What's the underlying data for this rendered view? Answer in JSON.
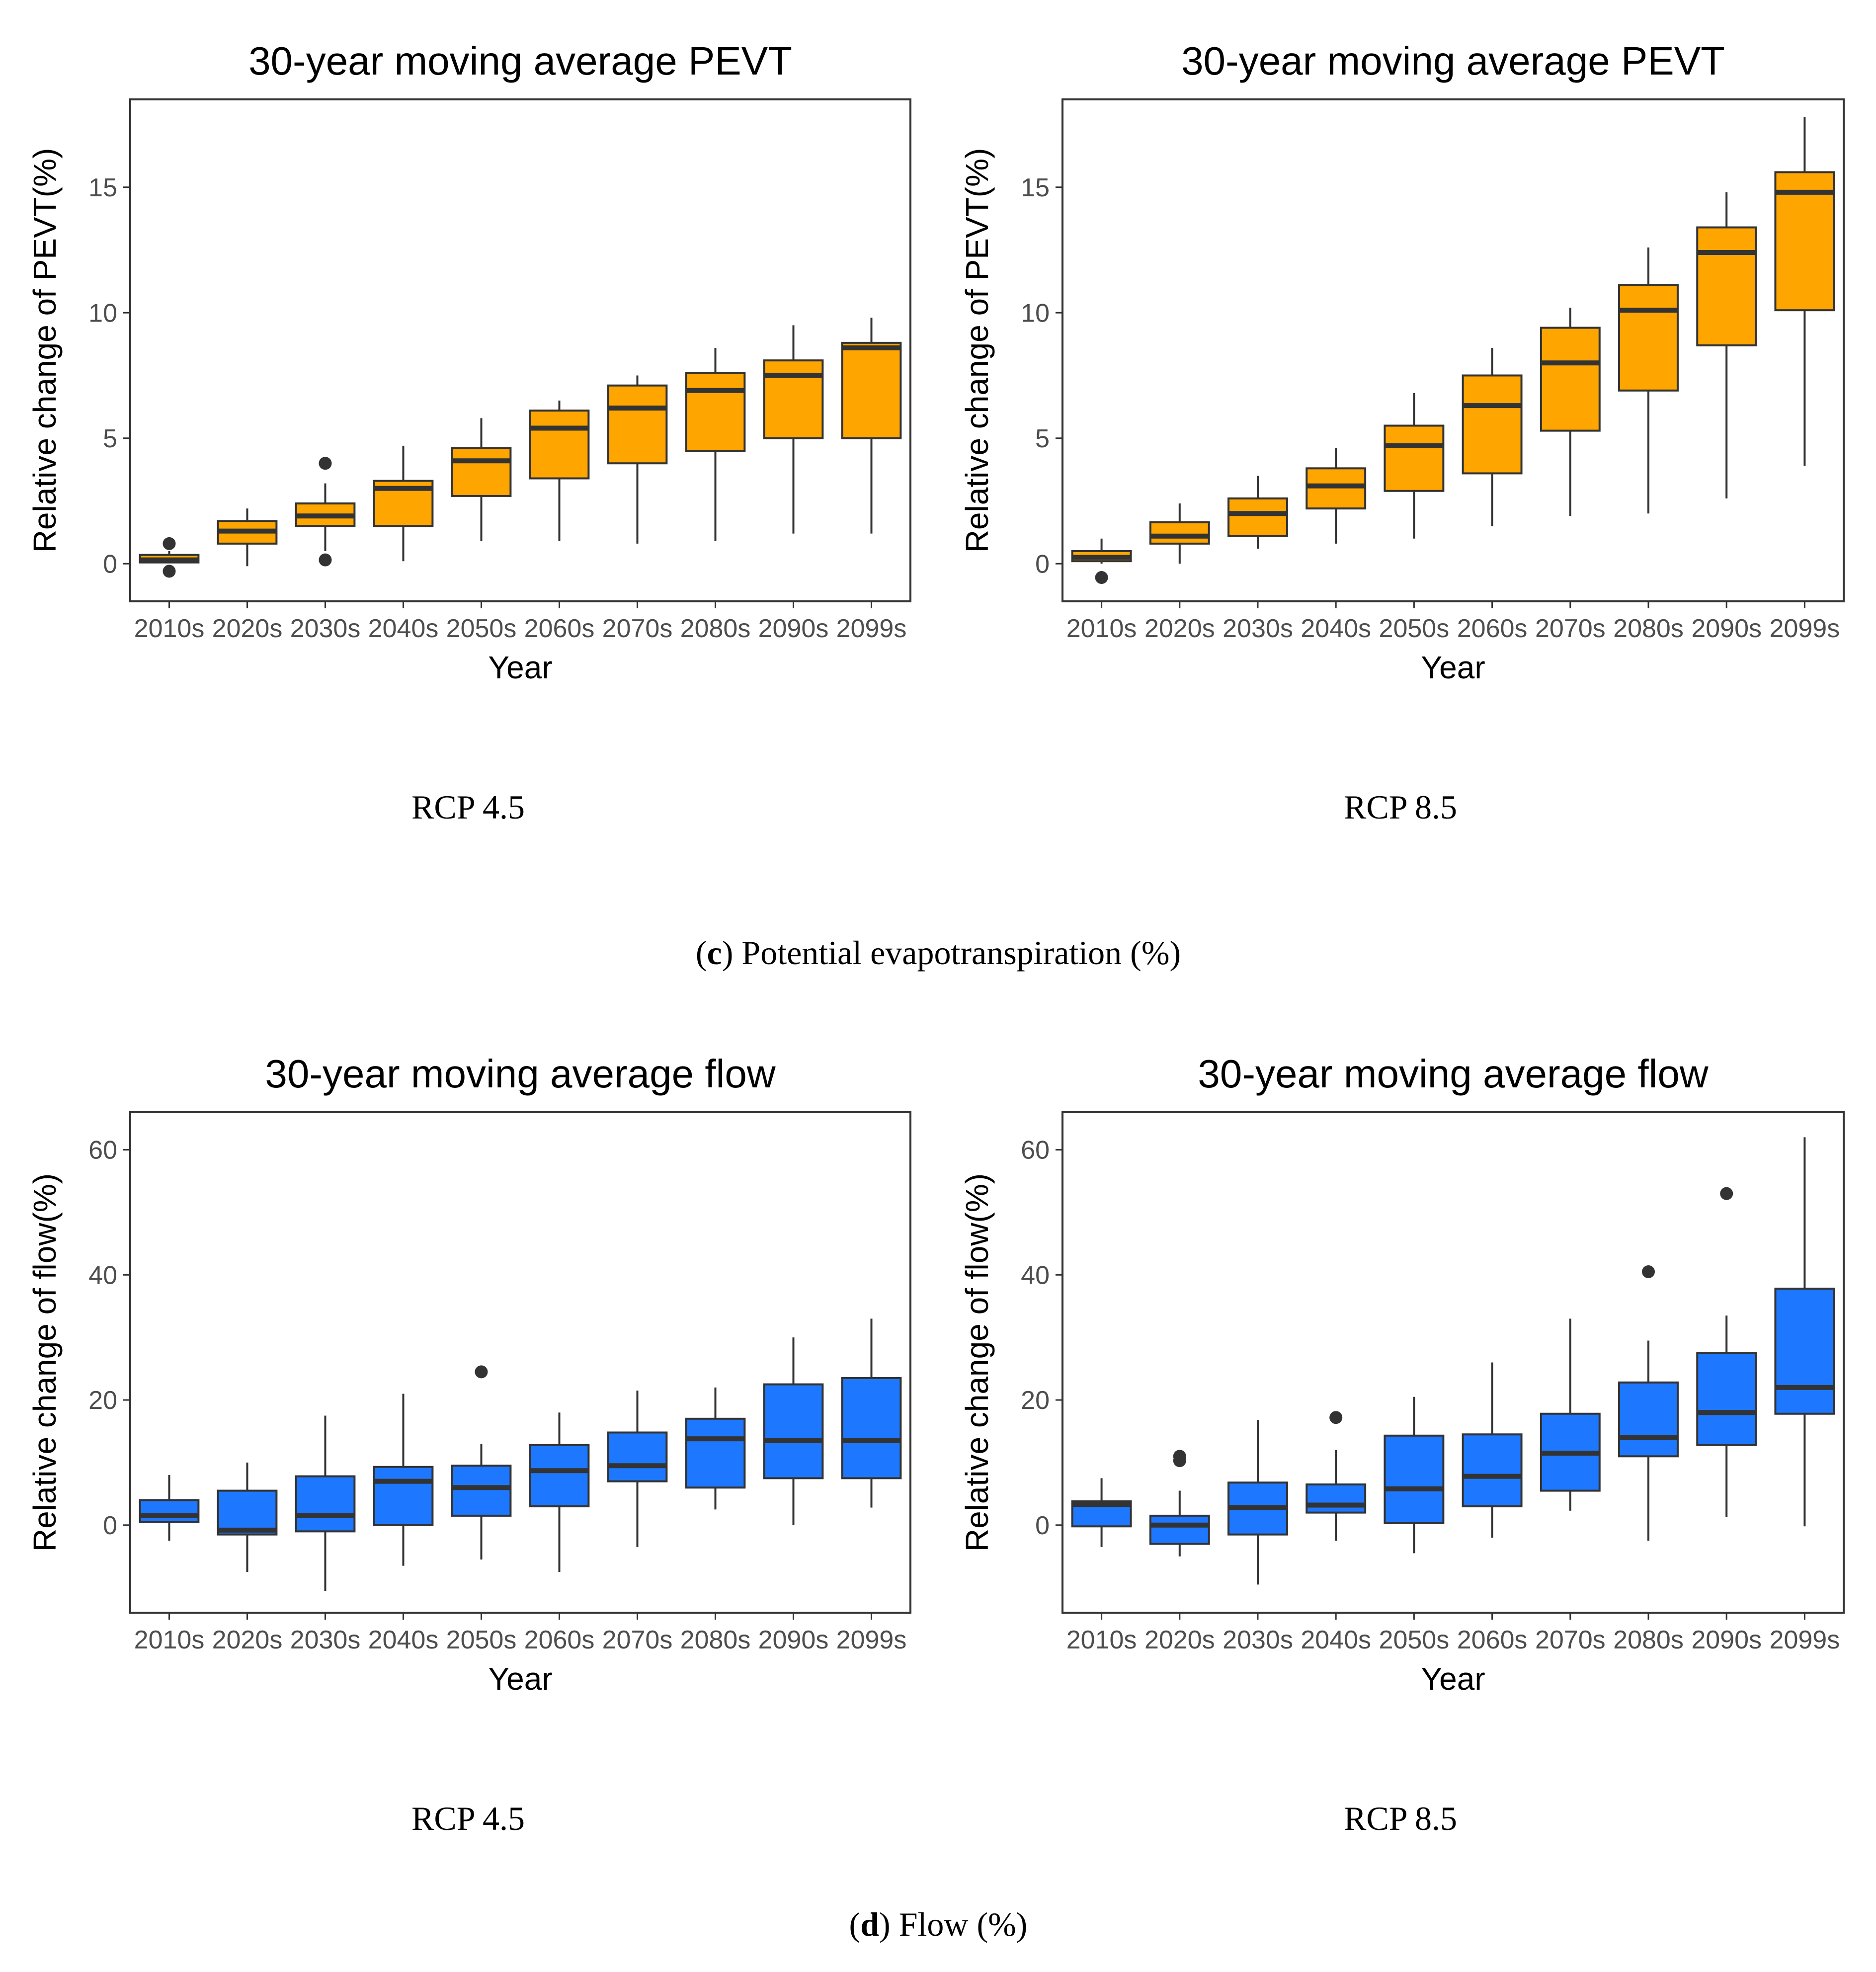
{
  "chart_data": [
    {
      "type": "boxplot",
      "title": "30-year moving average PEVT",
      "xlabel": "Year",
      "ylabel": "Relative change of PEVT(%)",
      "ylim": [
        -1.5,
        18.5
      ],
      "yticks": [
        0,
        5,
        10,
        15
      ],
      "fill_color": "#FFA500",
      "scenario_label": "RCP 4.5",
      "categories": [
        "2010s",
        "2020s",
        "2030s",
        "2040s",
        "2050s",
        "2060s",
        "2070s",
        "2080s",
        "2090s",
        "2099s"
      ],
      "boxes": [
        {
          "whisker_low": 0.05,
          "q1": 0.05,
          "median": 0.15,
          "q3": 0.35,
          "whisker_high": 0.5,
          "outliers": [
            0.8,
            -0.3
          ]
        },
        {
          "whisker_low": -0.1,
          "q1": 0.8,
          "median": 1.3,
          "q3": 1.7,
          "whisker_high": 2.2,
          "outliers": []
        },
        {
          "whisker_low": 0.5,
          "q1": 1.5,
          "median": 1.9,
          "q3": 2.4,
          "whisker_high": 3.2,
          "outliers": [
            4.0,
            0.15
          ]
        },
        {
          "whisker_low": 0.1,
          "q1": 1.5,
          "median": 3.0,
          "q3": 3.3,
          "whisker_high": 4.7,
          "outliers": []
        },
        {
          "whisker_low": 0.9,
          "q1": 2.7,
          "median": 4.1,
          "q3": 4.6,
          "whisker_high": 5.8,
          "outliers": []
        },
        {
          "whisker_low": 0.9,
          "q1": 3.4,
          "median": 5.4,
          "q3": 6.1,
          "whisker_high": 6.5,
          "outliers": []
        },
        {
          "whisker_low": 0.8,
          "q1": 4.0,
          "median": 6.2,
          "q3": 7.1,
          "whisker_high": 7.5,
          "outliers": []
        },
        {
          "whisker_low": 0.9,
          "q1": 4.5,
          "median": 6.9,
          "q3": 7.6,
          "whisker_high": 8.6,
          "outliers": []
        },
        {
          "whisker_low": 1.2,
          "q1": 5.0,
          "median": 7.5,
          "q3": 8.1,
          "whisker_high": 9.5,
          "outliers": []
        },
        {
          "whisker_low": 1.2,
          "q1": 5.0,
          "median": 8.6,
          "q3": 8.8,
          "whisker_high": 9.8,
          "outliers": []
        }
      ]
    },
    {
      "type": "boxplot",
      "title": "30-year moving average PEVT",
      "xlabel": "Year",
      "ylabel": "Relative change of PEVT(%)",
      "ylim": [
        -1.5,
        18.5
      ],
      "yticks": [
        0,
        5,
        10,
        15
      ],
      "fill_color": "#FFA500",
      "scenario_label": "RCP 8.5",
      "categories": [
        "2010s",
        "2020s",
        "2030s",
        "2040s",
        "2050s",
        "2060s",
        "2070s",
        "2080s",
        "2090s",
        "2099s"
      ],
      "boxes": [
        {
          "whisker_low": 0.0,
          "q1": 0.1,
          "median": 0.25,
          "q3": 0.5,
          "whisker_high": 1.0,
          "outliers": [
            -0.55
          ]
        },
        {
          "whisker_low": 0.0,
          "q1": 0.8,
          "median": 1.1,
          "q3": 1.65,
          "whisker_high": 2.4,
          "outliers": []
        },
        {
          "whisker_low": 0.6,
          "q1": 1.1,
          "median": 2.0,
          "q3": 2.6,
          "whisker_high": 3.5,
          "outliers": []
        },
        {
          "whisker_low": 0.8,
          "q1": 2.2,
          "median": 3.1,
          "q3": 3.8,
          "whisker_high": 4.6,
          "outliers": []
        },
        {
          "whisker_low": 1.0,
          "q1": 2.9,
          "median": 4.7,
          "q3": 5.5,
          "whisker_high": 6.8,
          "outliers": []
        },
        {
          "whisker_low": 1.5,
          "q1": 3.6,
          "median": 6.3,
          "q3": 7.5,
          "whisker_high": 8.6,
          "outliers": []
        },
        {
          "whisker_low": 1.9,
          "q1": 5.3,
          "median": 8.0,
          "q3": 9.4,
          "whisker_high": 10.2,
          "outliers": []
        },
        {
          "whisker_low": 2.0,
          "q1": 6.9,
          "median": 10.1,
          "q3": 11.1,
          "whisker_high": 12.6,
          "outliers": []
        },
        {
          "whisker_low": 2.6,
          "q1": 8.7,
          "median": 12.4,
          "q3": 13.4,
          "whisker_high": 14.8,
          "outliers": []
        },
        {
          "whisker_low": 3.9,
          "q1": 10.1,
          "median": 14.8,
          "q3": 15.6,
          "whisker_high": 17.8,
          "outliers": []
        }
      ]
    },
    {
      "type": "boxplot",
      "title": "30-year moving average flow",
      "xlabel": "Year",
      "ylabel": "Relative change of flow(%)",
      "ylim": [
        -14,
        66
      ],
      "yticks": [
        0,
        20,
        40,
        60
      ],
      "fill_color": "#1E78FF",
      "scenario_label": "RCP 4.5",
      "categories": [
        "2010s",
        "2020s",
        "2030s",
        "2040s",
        "2050s",
        "2060s",
        "2070s",
        "2080s",
        "2090s",
        "2099s"
      ],
      "boxes": [
        {
          "whisker_low": -2.5,
          "q1": 0.5,
          "median": 1.5,
          "q3": 4.0,
          "whisker_high": 8.0,
          "outliers": []
        },
        {
          "whisker_low": -7.5,
          "q1": -1.5,
          "median": -0.8,
          "q3": 5.5,
          "whisker_high": 10.0,
          "outliers": []
        },
        {
          "whisker_low": -10.5,
          "q1": -1.0,
          "median": 1.5,
          "q3": 7.8,
          "whisker_high": 17.5,
          "outliers": []
        },
        {
          "whisker_low": -6.5,
          "q1": 0.0,
          "median": 7.0,
          "q3": 9.3,
          "whisker_high": 21.0,
          "outliers": []
        },
        {
          "whisker_low": -5.5,
          "q1": 1.5,
          "median": 6.0,
          "q3": 9.5,
          "whisker_high": 13.0,
          "outliers": [
            24.5
          ]
        },
        {
          "whisker_low": -7.5,
          "q1": 3.0,
          "median": 8.7,
          "q3": 12.8,
          "whisker_high": 18.0,
          "outliers": []
        },
        {
          "whisker_low": -3.5,
          "q1": 7.0,
          "median": 9.5,
          "q3": 14.8,
          "whisker_high": 21.5,
          "outliers": []
        },
        {
          "whisker_low": 2.5,
          "q1": 6.0,
          "median": 13.8,
          "q3": 17.0,
          "whisker_high": 22.0,
          "outliers": []
        },
        {
          "whisker_low": 0.0,
          "q1": 7.5,
          "median": 13.5,
          "q3": 22.5,
          "whisker_high": 30.0,
          "outliers": []
        },
        {
          "whisker_low": 2.8,
          "q1": 7.5,
          "median": 13.5,
          "q3": 23.5,
          "whisker_high": 33.0,
          "outliers": []
        }
      ]
    },
    {
      "type": "boxplot",
      "title": "30-year moving average flow",
      "xlabel": "Year",
      "ylabel": "Relative change of flow(%)",
      "ylim": [
        -14,
        66
      ],
      "yticks": [
        0,
        20,
        40,
        60
      ],
      "fill_color": "#1E78FF",
      "scenario_label": "RCP 8.5",
      "categories": [
        "2010s",
        "2020s",
        "2030s",
        "2040s",
        "2050s",
        "2060s",
        "2070s",
        "2080s",
        "2090s",
        "2099s"
      ],
      "boxes": [
        {
          "whisker_low": -3.5,
          "q1": -0.2,
          "median": 3.3,
          "q3": 3.8,
          "whisker_high": 7.5,
          "outliers": []
        },
        {
          "whisker_low": -5.0,
          "q1": -3.0,
          "median": 0.0,
          "q3": 1.5,
          "whisker_high": 5.5,
          "outliers": [
            10.3,
            11.0
          ]
        },
        {
          "whisker_low": -9.5,
          "q1": -1.5,
          "median": 2.8,
          "q3": 6.8,
          "whisker_high": 16.8,
          "outliers": []
        },
        {
          "whisker_low": -2.5,
          "q1": 2.0,
          "median": 3.2,
          "q3": 6.5,
          "whisker_high": 12.0,
          "outliers": [
            17.2
          ]
        },
        {
          "whisker_low": -4.5,
          "q1": 0.3,
          "median": 5.8,
          "q3": 14.3,
          "whisker_high": 20.5,
          "outliers": []
        },
        {
          "whisker_low": -2.0,
          "q1": 3.0,
          "median": 7.8,
          "q3": 14.5,
          "whisker_high": 26.0,
          "outliers": []
        },
        {
          "whisker_low": 2.3,
          "q1": 5.5,
          "median": 11.5,
          "q3": 17.8,
          "whisker_high": 33.0,
          "outliers": []
        },
        {
          "whisker_low": -2.5,
          "q1": 11.0,
          "median": 14.0,
          "q3": 22.8,
          "whisker_high": 29.5,
          "outliers": [
            40.5
          ]
        },
        {
          "whisker_low": 1.3,
          "q1": 12.8,
          "median": 18.0,
          "q3": 27.5,
          "whisker_high": 33.5,
          "outliers": [
            53.0
          ]
        },
        {
          "whisker_low": -0.2,
          "q1": 17.8,
          "median": 22.0,
          "q3": 37.8,
          "whisker_high": 62.0,
          "outliers": []
        }
      ]
    }
  ],
  "captions": [
    {
      "letter": "c",
      "text": " Potential evapotranspiration (%)"
    },
    {
      "letter": "d",
      "text": " Flow (%)"
    }
  ]
}
